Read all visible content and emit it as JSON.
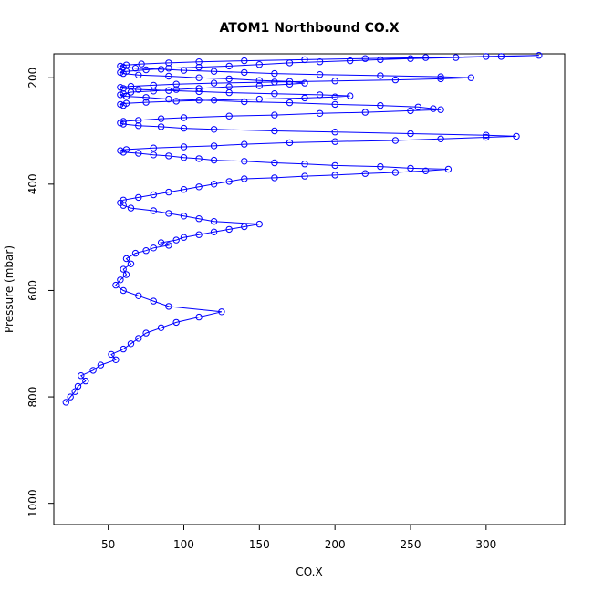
{
  "chart_data": {
    "type": "scatter",
    "title": "ATOM1 Northbound CO.X",
    "xlabel": "CO.X",
    "ylabel": "Pressure (mbar)",
    "xlim": [
      14,
      352
    ],
    "ylim": [
      1040,
      155
    ],
    "y_reversed": true,
    "x_ticks": [
      "50",
      "100",
      "150",
      "200",
      "250",
      "300"
    ],
    "y_ticks": [
      "200",
      "400",
      "600",
      "800",
      "1000"
    ],
    "grid": false,
    "point_style": "open-circle-with-connecting-lines",
    "series_color": "#0000ff",
    "series": [
      {
        "x": [
          22,
          25,
          28,
          30,
          35,
          32,
          40,
          45,
          55,
          52,
          60,
          65,
          70,
          75,
          85,
          95,
          110,
          125,
          90,
          80,
          70,
          60,
          55,
          58,
          62,
          60,
          65,
          62,
          68,
          75,
          80,
          90,
          85,
          95,
          100,
          110,
          120,
          130,
          140,
          150,
          120,
          110,
          100,
          90,
          80,
          65,
          60,
          58,
          60,
          70,
          80,
          90,
          100,
          110,
          120,
          130,
          140,
          160,
          180,
          200,
          220,
          240,
          260,
          275,
          250,
          230,
          200,
          180,
          160,
          140,
          120,
          110,
          100,
          90,
          80,
          70,
          60,
          58,
          62,
          80,
          100,
          120,
          140,
          170,
          200,
          240,
          270,
          300,
          320,
          300,
          250,
          200,
          160,
          120,
          100,
          85,
          70,
          60,
          58,
          60,
          70,
          85,
          100,
          130,
          160,
          190,
          220,
          250,
          270,
          265,
          255,
          230,
          200,
          170,
          140,
          110,
          90,
          75,
          62,
          58,
          60,
          65,
          80,
          95,
          110,
          130,
          150,
          170,
          180,
          170,
          150,
          130,
          110,
          90,
          70,
          60,
          58,
          62,
          75,
          90,
          110,
          130,
          150,
          170,
          190,
          210,
          230,
          250,
          280,
          310,
          335,
          300,
          260,
          220,
          180,
          140,
          110,
          90,
          72,
          62,
          58,
          60,
          68,
          85,
          100,
          120,
          140,
          160,
          190,
          230,
          270,
          290,
          270,
          240,
          200,
          160,
          120,
          95,
          80,
          65,
          58,
          60,
          70,
          90,
          110,
          130,
          160,
          190,
          210,
          200,
          180,
          150,
          120,
          95,
          75,
          62,
          58,
          60
        ],
        "y": [
          810,
          800,
          790,
          780,
          770,
          760,
          750,
          740,
          730,
          720,
          710,
          700,
          690,
          680,
          670,
          660,
          650,
          640,
          630,
          620,
          610,
          600,
          590,
          580,
          570,
          560,
          550,
          540,
          530,
          525,
          520,
          515,
          510,
          505,
          500,
          495,
          490,
          485,
          480,
          475,
          470,
          465,
          460,
          455,
          450,
          445,
          440,
          435,
          430,
          425,
          420,
          415,
          410,
          405,
          400,
          395,
          390,
          388,
          385,
          383,
          380,
          378,
          375,
          372,
          370,
          367,
          365,
          362,
          360,
          357,
          355,
          352,
          350,
          347,
          345,
          342,
          340,
          337,
          335,
          332,
          330,
          328,
          325,
          322,
          320,
          318,
          315,
          312,
          310,
          308,
          305,
          302,
          300,
          297,
          295,
          292,
          290,
          287,
          285,
          282,
          280,
          277,
          275,
          272,
          270,
          267,
          265,
          262,
          260,
          258,
          255,
          252,
          250,
          247,
          245,
          242,
          240,
          237,
          235,
          232,
          230,
          227,
          225,
          222,
          220,
          217,
          215,
          212,
          210,
          207,
          205,
          202,
          200,
          197,
          195,
          192,
          190,
          188,
          185,
          182,
          180,
          178,
          175,
          172,
          170,
          168,
          166,
          164,
          162,
          160,
          158,
          160,
          162,
          164,
          166,
          168,
          170,
          172,
          174,
          176,
          178,
          180,
          182,
          184,
          186,
          188,
          190,
          192,
          194,
          196,
          198,
          200,
          202,
          204,
          206,
          208,
          210,
          212,
          214,
          216,
          218,
          220,
          222,
          224,
          226,
          228,
          230,
          232,
          234,
          236,
          238,
          240,
          242,
          244,
          246,
          248,
          250,
          252
        ]
      }
    ]
  }
}
